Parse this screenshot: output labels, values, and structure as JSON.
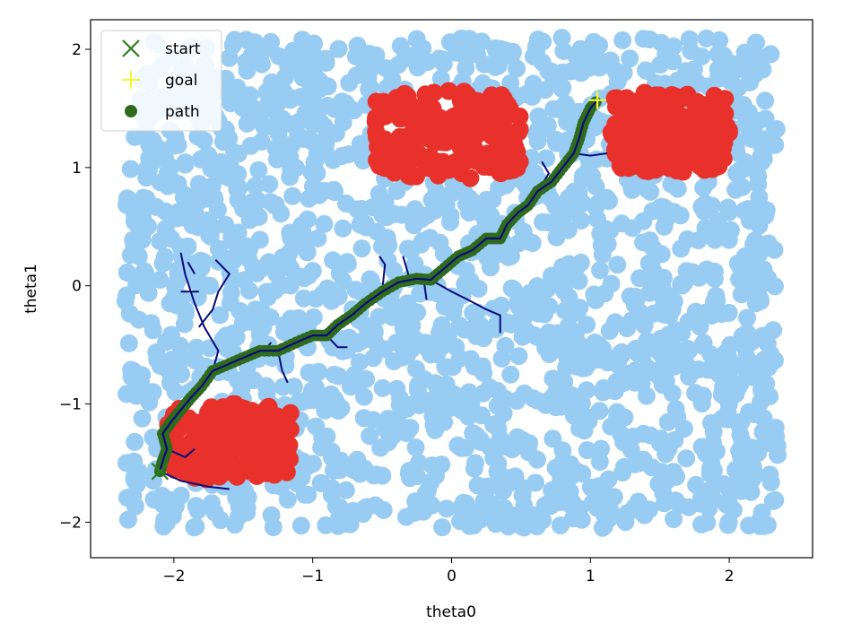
{
  "chart_data": {
    "type": "scatter",
    "title": "",
    "xlabel": "theta0",
    "ylabel": "theta1",
    "xlim": [
      -2.6,
      2.6
    ],
    "ylim": [
      -2.3,
      2.25
    ],
    "xticks": [
      {
        "v": -2,
        "label": "−2"
      },
      {
        "v": -1,
        "label": "−1"
      },
      {
        "v": 0,
        "label": "0"
      },
      {
        "v": 1,
        "label": "1"
      },
      {
        "v": 2,
        "label": "2"
      }
    ],
    "yticks": [
      {
        "v": -2,
        "label": "−2"
      },
      {
        "v": -1,
        "label": "−1"
      },
      {
        "v": 0,
        "label": "0"
      },
      {
        "v": 1,
        "label": "1"
      },
      {
        "v": 2,
        "label": "2"
      }
    ],
    "grid": false,
    "legend_position": "top-left",
    "colors": {
      "free_samples": "#99ccf2",
      "obstacle_samples": "#e8312a",
      "tree": "#0a0a7a",
      "path": "#2e6b1e",
      "start": "#2e7d1e",
      "goal": "#f5f53a"
    },
    "sampling_region": {
      "x": [
        -2.35,
        2.35
      ],
      "y": [
        -2.05,
        2.1
      ]
    },
    "obstacles": [
      {
        "x_range": [
          -0.55,
          0.5
        ],
        "y_range": [
          0.9,
          1.65
        ]
      },
      {
        "x_range": [
          1.15,
          2.0
        ],
        "y_range": [
          0.95,
          1.65
        ]
      },
      {
        "x_range": [
          -2.05,
          -1.15
        ],
        "y_range": [
          -1.65,
          -1.0
        ]
      }
    ],
    "legend": [
      {
        "label": "start",
        "marker": "x",
        "color": "#2e7d1e"
      },
      {
        "label": "goal",
        "marker": "+",
        "color": "#f5f53a"
      },
      {
        "label": "path",
        "marker": "dot",
        "color": "#2e6b1e"
      }
    ],
    "start": {
      "x": -2.1,
      "y": -1.57
    },
    "goal": {
      "x": 1.05,
      "y": 1.57
    },
    "path": [
      {
        "x": -2.1,
        "y": -1.57
      },
      {
        "x": -2.08,
        "y": -1.48
      },
      {
        "x": -2.05,
        "y": -1.38
      },
      {
        "x": -2.08,
        "y": -1.25
      },
      {
        "x": -2.02,
        "y": -1.15
      },
      {
        "x": -1.95,
        "y": -1.05
      },
      {
        "x": -1.88,
        "y": -0.95
      },
      {
        "x": -1.8,
        "y": -0.85
      },
      {
        "x": -1.72,
        "y": -0.72
      },
      {
        "x": -1.6,
        "y": -0.66
      },
      {
        "x": -1.48,
        "y": -0.6
      },
      {
        "x": -1.38,
        "y": -0.55
      },
      {
        "x": -1.25,
        "y": -0.55
      },
      {
        "x": -1.12,
        "y": -0.48
      },
      {
        "x": -1.0,
        "y": -0.42
      },
      {
        "x": -0.9,
        "y": -0.42
      },
      {
        "x": -0.82,
        "y": -0.33
      },
      {
        "x": -0.72,
        "y": -0.25
      },
      {
        "x": -0.62,
        "y": -0.15
      },
      {
        "x": -0.5,
        "y": -0.05
      },
      {
        "x": -0.38,
        "y": 0.03
      },
      {
        "x": -0.25,
        "y": 0.06
      },
      {
        "x": -0.15,
        "y": 0.05
      },
      {
        "x": -0.05,
        "y": 0.15
      },
      {
        "x": 0.05,
        "y": 0.25
      },
      {
        "x": 0.15,
        "y": 0.3
      },
      {
        "x": 0.25,
        "y": 0.4
      },
      {
        "x": 0.35,
        "y": 0.4
      },
      {
        "x": 0.4,
        "y": 0.52
      },
      {
        "x": 0.48,
        "y": 0.62
      },
      {
        "x": 0.55,
        "y": 0.68
      },
      {
        "x": 0.62,
        "y": 0.8
      },
      {
        "x": 0.72,
        "y": 0.88
      },
      {
        "x": 0.8,
        "y": 1.0
      },
      {
        "x": 0.88,
        "y": 1.12
      },
      {
        "x": 0.92,
        "y": 1.25
      },
      {
        "x": 0.95,
        "y": 1.38
      },
      {
        "x": 1.0,
        "y": 1.5
      },
      {
        "x": 1.05,
        "y": 1.57
      }
    ],
    "tree_branches": [
      [
        {
          "x": -2.1,
          "y": -1.57
        },
        {
          "x": -1.95,
          "y": -1.65
        },
        {
          "x": -1.75,
          "y": -1.7
        },
        {
          "x": -1.6,
          "y": -1.72
        }
      ],
      [
        {
          "x": -2.05,
          "y": -1.38
        },
        {
          "x": -1.92,
          "y": -1.45
        },
        {
          "x": -1.85,
          "y": -1.38
        }
      ],
      [
        {
          "x": -1.72,
          "y": -0.72
        },
        {
          "x": -1.68,
          "y": -0.55
        },
        {
          "x": -1.78,
          "y": -0.35
        },
        {
          "x": -1.85,
          "y": -0.15
        },
        {
          "x": -1.92,
          "y": 0.1
        },
        {
          "x": -1.95,
          "y": 0.28
        }
      ],
      [
        {
          "x": -1.82,
          "y": -0.35
        },
        {
          "x": -1.72,
          "y": -0.2
        },
        {
          "x": -1.68,
          "y": -0.05
        },
        {
          "x": -1.6,
          "y": 0.1
        },
        {
          "x": -1.7,
          "y": 0.22
        }
      ],
      [
        {
          "x": -1.95,
          "y": -0.05
        },
        {
          "x": -1.82,
          "y": -0.05
        }
      ],
      [
        {
          "x": -1.85,
          "y": 0.1
        },
        {
          "x": -1.9,
          "y": 0.2
        }
      ],
      [
        {
          "x": -1.35,
          "y": -0.55
        },
        {
          "x": -1.3,
          "y": -0.48
        }
      ],
      [
        {
          "x": -1.25,
          "y": -0.55
        },
        {
          "x": -1.22,
          "y": -0.72
        },
        {
          "x": -1.18,
          "y": -0.82
        }
      ],
      [
        {
          "x": -0.9,
          "y": -0.42
        },
        {
          "x": -0.82,
          "y": -0.52
        },
        {
          "x": -0.75,
          "y": -0.52
        }
      ],
      [
        {
          "x": -0.5,
          "y": -0.05
        },
        {
          "x": -0.48,
          "y": 0.18
        },
        {
          "x": -0.52,
          "y": 0.25
        }
      ],
      [
        {
          "x": -0.3,
          "y": 0.05
        },
        {
          "x": -0.35,
          "y": 0.25
        }
      ],
      [
        {
          "x": -0.2,
          "y": 0.05
        },
        {
          "x": -0.18,
          "y": -0.12
        }
      ],
      [
        {
          "x": -0.15,
          "y": 0.05
        },
        {
          "x": 0.0,
          "y": -0.05
        },
        {
          "x": 0.12,
          "y": -0.12
        },
        {
          "x": 0.25,
          "y": -0.2
        },
        {
          "x": 0.35,
          "y": -0.25
        },
        {
          "x": 0.35,
          "y": -0.4
        }
      ],
      [
        {
          "x": 0.62,
          "y": 0.8
        },
        {
          "x": 0.7,
          "y": 0.95
        },
        {
          "x": 0.65,
          "y": 1.05
        }
      ],
      [
        {
          "x": 0.88,
          "y": 1.12
        },
        {
          "x": 1.0,
          "y": 1.1
        },
        {
          "x": 1.12,
          "y": 1.12
        }
      ]
    ]
  }
}
